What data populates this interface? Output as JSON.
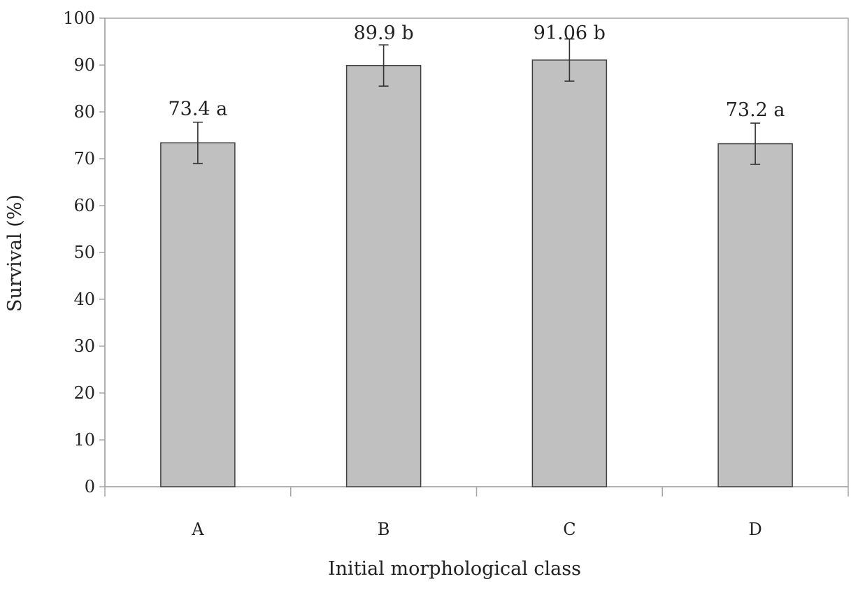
{
  "chart_data": {
    "type": "bar",
    "categories": [
      "A",
      "B",
      "C",
      "D"
    ],
    "values": [
      73.4,
      89.9,
      91.06,
      73.2
    ],
    "error": [
      4.4,
      4.4,
      4.5,
      4.4
    ],
    "data_labels": [
      "73.4 a",
      "89.9 b",
      "91.06 b",
      "73.2 a"
    ],
    "xlabel": "Initial morphological class",
    "ylabel": "Survival (%)",
    "ylim": [
      0,
      100
    ],
    "yticks": [
      0,
      10,
      20,
      30,
      40,
      50,
      60,
      70,
      80,
      90,
      100
    ],
    "grid": false,
    "legend": "none",
    "bar_color": "#c0c0c0",
    "bar_edge_color": "#404040",
    "axis_color": "#a6a6a6"
  }
}
